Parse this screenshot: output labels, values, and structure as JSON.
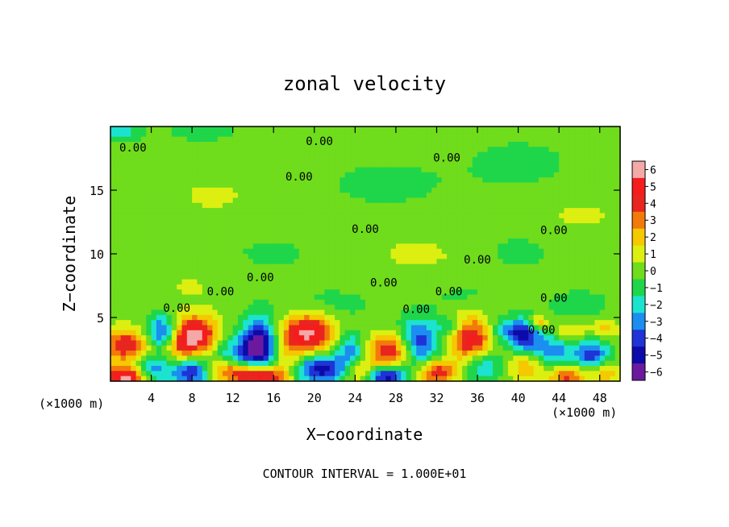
{
  "chart_data": {
    "type": "heatmap",
    "title": "zonal velocity",
    "xlabel": "X−coordinate",
    "ylabel": "Z−coordinate",
    "x_unit_left": "(×1000 m)",
    "x_unit_right": "(×1000 m)",
    "footer": "CONTOUR INTERVAL = 1.000E+01",
    "xlim": [
      0,
      50
    ],
    "ylim": [
      0,
      20
    ],
    "x_ticks": [
      4,
      8,
      12,
      16,
      20,
      24,
      28,
      32,
      36,
      40,
      44,
      48
    ],
    "y_ticks": [
      5,
      10,
      15
    ],
    "colorbar": {
      "levels": [
        6,
        5,
        4,
        3,
        2,
        1,
        0,
        -1,
        -2,
        -3,
        -4,
        -5,
        -6
      ],
      "colors": [
        "#f4a8a8",
        "#f51c1c",
        "#e8251f",
        "#f27a0a",
        "#f5c800",
        "#dcef10",
        "#6fdc1c",
        "#1fd64a",
        "#1ce3cf",
        "#1b8ef0",
        "#1f33d6",
        "#0c0aa8",
        "#6b1aa0"
      ]
    },
    "contour_labels": [
      {
        "text": "0.00",
        "x": 2.2,
        "y": 18.3
      },
      {
        "text": "0.00",
        "x": 20.5,
        "y": 18.8
      },
      {
        "text": "0.00",
        "x": 33.0,
        "y": 17.5
      },
      {
        "text": "0.00",
        "x": 18.5,
        "y": 16.0
      },
      {
        "text": "0.00",
        "x": 25.0,
        "y": 11.9
      },
      {
        "text": "0.00",
        "x": 43.5,
        "y": 11.8
      },
      {
        "text": "0.00",
        "x": 36.0,
        "y": 9.5
      },
      {
        "text": "0.00",
        "x": 14.7,
        "y": 8.1
      },
      {
        "text": "0.00",
        "x": 10.8,
        "y": 7.0
      },
      {
        "text": "0.00",
        "x": 26.8,
        "y": 7.7
      },
      {
        "text": "0.00",
        "x": 33.2,
        "y": 7.0
      },
      {
        "text": "0.00",
        "x": 43.5,
        "y": 6.5
      },
      {
        "text": "0.00",
        "x": 6.5,
        "y": 5.7
      },
      {
        "text": "0.00",
        "x": 30.0,
        "y": 5.6
      },
      {
        "text": "0.00",
        "x": 42.3,
        "y": 4.0
      }
    ],
    "anomalies": [
      {
        "x": 1.5,
        "y": 2.8,
        "v": 4.5,
        "sx": 1.6,
        "sy": 0.9
      },
      {
        "x": 1.6,
        "y": 0.3,
        "v": 6.0,
        "sx": 1.6,
        "sy": 0.6
      },
      {
        "x": 4.0,
        "y": 0.8,
        "v": -3.5,
        "sx": 1.2,
        "sy": 0.8
      },
      {
        "x": 5.0,
        "y": 3.9,
        "v": -4.0,
        "sx": 1.0,
        "sy": 0.9
      },
      {
        "x": 7.0,
        "y": 2.7,
        "v": 2.5,
        "sx": 1.0,
        "sy": 0.8
      },
      {
        "x": 8.4,
        "y": 3.7,
        "v": 5.8,
        "sx": 1.4,
        "sy": 1.0
      },
      {
        "x": 8.0,
        "y": 0.7,
        "v": -5.0,
        "sx": 1.4,
        "sy": 0.7
      },
      {
        "x": 11.0,
        "y": 0.8,
        "v": 3.0,
        "sx": 1.6,
        "sy": 0.6
      },
      {
        "x": 12.3,
        "y": 2.3,
        "v": -2.5,
        "sx": 1.4,
        "sy": 0.8
      },
      {
        "x": 14.6,
        "y": 2.9,
        "v": -6.0,
        "sx": 1.2,
        "sy": 1.5
      },
      {
        "x": 14.8,
        "y": 0.4,
        "v": 6.0,
        "sx": 1.8,
        "sy": 0.6
      },
      {
        "x": 17.5,
        "y": 2.0,
        "v": 2.0,
        "sx": 1.0,
        "sy": 1.0
      },
      {
        "x": 19.4,
        "y": 3.8,
        "v": 6.0,
        "sx": 1.8,
        "sy": 1.0
      },
      {
        "x": 20.6,
        "y": 0.9,
        "v": -5.0,
        "sx": 2.0,
        "sy": 0.8
      },
      {
        "x": 23.5,
        "y": 2.5,
        "v": -3.0,
        "sx": 1.0,
        "sy": 1.0
      },
      {
        "x": 24.5,
        "y": 0.7,
        "v": 3.0,
        "sx": 1.2,
        "sy": 0.7
      },
      {
        "x": 27.5,
        "y": 2.4,
        "v": 4.5,
        "sx": 1.6,
        "sy": 0.9
      },
      {
        "x": 27.0,
        "y": 0.4,
        "v": -5.5,
        "sx": 1.4,
        "sy": 0.5
      },
      {
        "x": 30.3,
        "y": 3.0,
        "v": -4.5,
        "sx": 1.4,
        "sy": 1.3
      },
      {
        "x": 32.0,
        "y": 0.7,
        "v": 4.5,
        "sx": 1.3,
        "sy": 0.7
      },
      {
        "x": 35.4,
        "y": 3.3,
        "v": 5.0,
        "sx": 1.4,
        "sy": 1.3
      },
      {
        "x": 36.5,
        "y": 1.2,
        "v": -3.0,
        "sx": 1.3,
        "sy": 0.9
      },
      {
        "x": 40.5,
        "y": 3.6,
        "v": -4.5,
        "sx": 1.2,
        "sy": 0.9
      },
      {
        "x": 40.8,
        "y": 1.2,
        "v": 2.5,
        "sx": 1.2,
        "sy": 0.8
      },
      {
        "x": 43.5,
        "y": 2.4,
        "v": -3.0,
        "sx": 1.6,
        "sy": 1.0
      },
      {
        "x": 44.8,
        "y": 0.4,
        "v": 4.0,
        "sx": 1.2,
        "sy": 0.6
      },
      {
        "x": 47.3,
        "y": 2.1,
        "v": -4.0,
        "sx": 1.2,
        "sy": 0.8
      },
      {
        "x": 48.5,
        "y": 0.6,
        "v": 2.5,
        "sx": 1.0,
        "sy": 0.6
      },
      {
        "x": 42.0,
        "y": 4.6,
        "v": 3.0,
        "sx": 0.6,
        "sy": 0.4
      },
      {
        "x": 38.5,
        "y": 4.0,
        "v": -1.8,
        "sx": 1.2,
        "sy": 0.6
      },
      {
        "x": 33.5,
        "y": 4.4,
        "v": -2.0,
        "sx": 1.0,
        "sy": 0.4
      },
      {
        "x": 45.0,
        "y": 3.8,
        "v": 2.0,
        "sx": 1.2,
        "sy": 0.6
      },
      {
        "x": 48.5,
        "y": 4.2,
        "v": 1.8,
        "sx": 1.0,
        "sy": 0.5
      },
      {
        "x": 1.0,
        "y": 19.6,
        "v": -2.0,
        "sx": 1.6,
        "sy": 0.5
      },
      {
        "x": 9.0,
        "y": 19.6,
        "v": -1.5,
        "sx": 2.0,
        "sy": 0.5
      },
      {
        "x": 27.0,
        "y": 15.5,
        "v": -1.0,
        "sx": 4.0,
        "sy": 1.2
      },
      {
        "x": 40.0,
        "y": 17.0,
        "v": -0.9,
        "sx": 4.0,
        "sy": 1.5
      },
      {
        "x": 16.0,
        "y": 10.0,
        "v": -0.6,
        "sx": 5.0,
        "sy": 1.6
      },
      {
        "x": 40.0,
        "y": 10.2,
        "v": -0.8,
        "sx": 3.0,
        "sy": 1.2
      },
      {
        "x": 10.0,
        "y": 14.5,
        "v": 0.6,
        "sx": 4.0,
        "sy": 1.5
      },
      {
        "x": 30.0,
        "y": 10.0,
        "v": 0.7,
        "sx": 4.0,
        "sy": 1.2
      },
      {
        "x": 46.0,
        "y": 13.0,
        "v": 0.6,
        "sx": 4.0,
        "sy": 1.5
      },
      {
        "x": 8.0,
        "y": 7.5,
        "v": 0.6,
        "sx": 3.0,
        "sy": 1.0
      },
      {
        "x": 22.0,
        "y": 6.0,
        "v": -0.8,
        "sx": 3.0,
        "sy": 1.0
      },
      {
        "x": 35.0,
        "y": 6.5,
        "v": -0.7,
        "sx": 3.0,
        "sy": 1.0
      },
      {
        "x": 46.0,
        "y": 6.0,
        "v": -0.9,
        "sx": 2.5,
        "sy": 1.0
      },
      {
        "x": 3.0,
        "y": 12.0,
        "v": -0.5,
        "sx": 2.5,
        "sy": 1.5
      }
    ]
  }
}
